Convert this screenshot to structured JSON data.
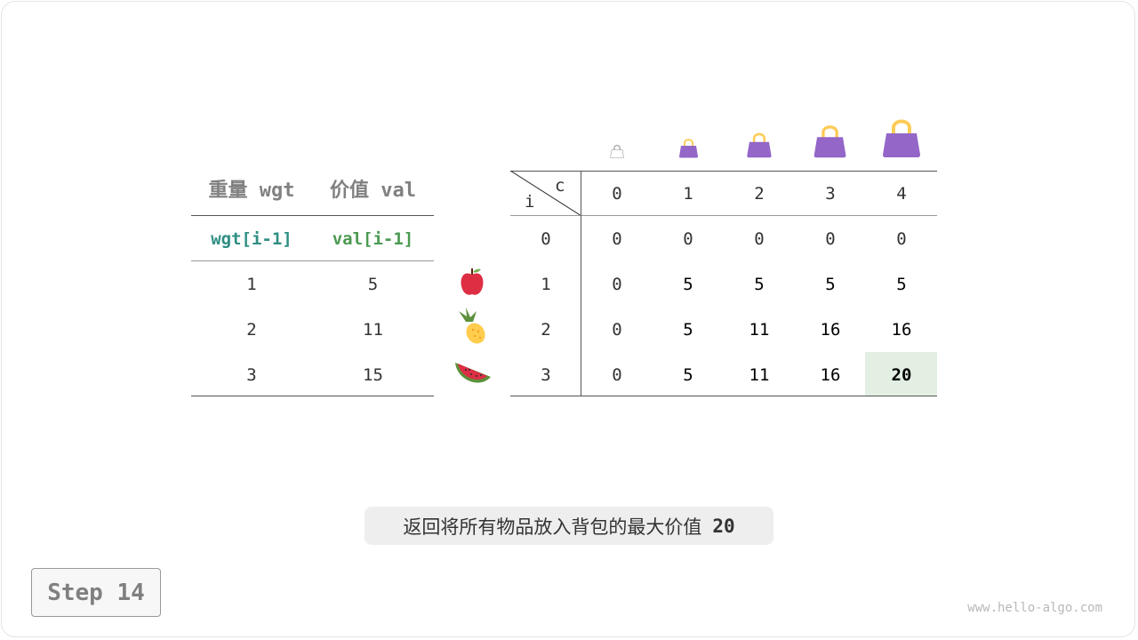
{
  "left_table": {
    "headers": [
      "重量 wgt",
      "价值 val"
    ],
    "subheaders": [
      "wgt[i-1]",
      "val[i-1]"
    ],
    "rows": [
      [
        "1",
        "5"
      ],
      [
        "2",
        "11"
      ],
      [
        "3",
        "15"
      ]
    ],
    "wgt_color": "#2f8f83",
    "val_color": "#4c9a52"
  },
  "items": [
    "apple-icon",
    "pineapple-icon",
    "watermelon-icon"
  ],
  "dp_table": {
    "corner_c": "c",
    "corner_i": "i",
    "col_headers": [
      "0",
      "1",
      "2",
      "3",
      "4"
    ],
    "row_headers": [
      "0",
      "1",
      "2",
      "3"
    ],
    "rows": [
      [
        "0",
        "0",
        "0",
        "0",
        "0"
      ],
      [
        "0",
        "5",
        "5",
        "5",
        "5"
      ],
      [
        "0",
        "5",
        "11",
        "16",
        "16"
      ],
      [
        "0",
        "5",
        "11",
        "16",
        "20"
      ]
    ],
    "highlight_color": "#e3efe3",
    "bag_color": "#9366c8"
  },
  "caption": {
    "text": "返回将所有物品放入背包的最大价值",
    "value": "20"
  },
  "step_label": "Step 14",
  "watermark": "www.hello-algo.com"
}
